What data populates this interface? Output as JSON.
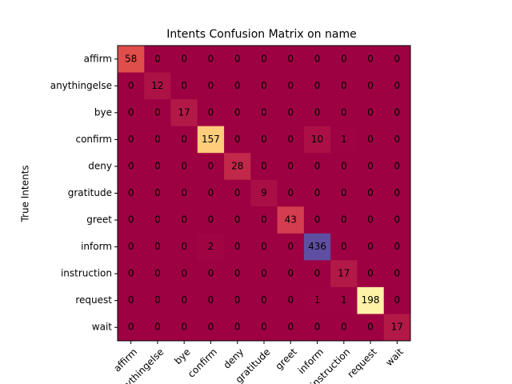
{
  "chart_data": {
    "type": "heatmap",
    "title": "Intents Confusion Matrix on name",
    "ylabel": "True Intents",
    "colormap": "Spectral",
    "x_categories": [
      "affirm",
      "anythingelse",
      "bye",
      "confirm",
      "deny",
      "gratitude",
      "greet",
      "inform",
      "instruction",
      "request",
      "wait"
    ],
    "y_categories": [
      "affirm",
      "anythingelse",
      "bye",
      "confirm",
      "deny",
      "gratitude",
      "greet",
      "inform",
      "instruction",
      "request",
      "wait"
    ],
    "values": [
      [
        58,
        0,
        0,
        0,
        0,
        0,
        0,
        0,
        0,
        0,
        0
      ],
      [
        0,
        12,
        0,
        0,
        0,
        0,
        0,
        0,
        0,
        0,
        0
      ],
      [
        0,
        0,
        17,
        0,
        0,
        0,
        0,
        0,
        0,
        0,
        0
      ],
      [
        0,
        0,
        0,
        157,
        0,
        0,
        0,
        10,
        1,
        0,
        0
      ],
      [
        0,
        0,
        0,
        0,
        28,
        0,
        0,
        0,
        0,
        0,
        0
      ],
      [
        0,
        0,
        0,
        0,
        0,
        9,
        0,
        0,
        0,
        0,
        0
      ],
      [
        0,
        0,
        0,
        0,
        0,
        0,
        43,
        0,
        0,
        0,
        0
      ],
      [
        0,
        0,
        0,
        2,
        0,
        0,
        0,
        436,
        0,
        0,
        0
      ],
      [
        0,
        0,
        0,
        0,
        0,
        0,
        0,
        0,
        17,
        0,
        0
      ],
      [
        0,
        0,
        0,
        0,
        0,
        0,
        0,
        1,
        1,
        198,
        0
      ],
      [
        0,
        0,
        0,
        0,
        0,
        0,
        0,
        0,
        0,
        0,
        17
      ]
    ]
  }
}
